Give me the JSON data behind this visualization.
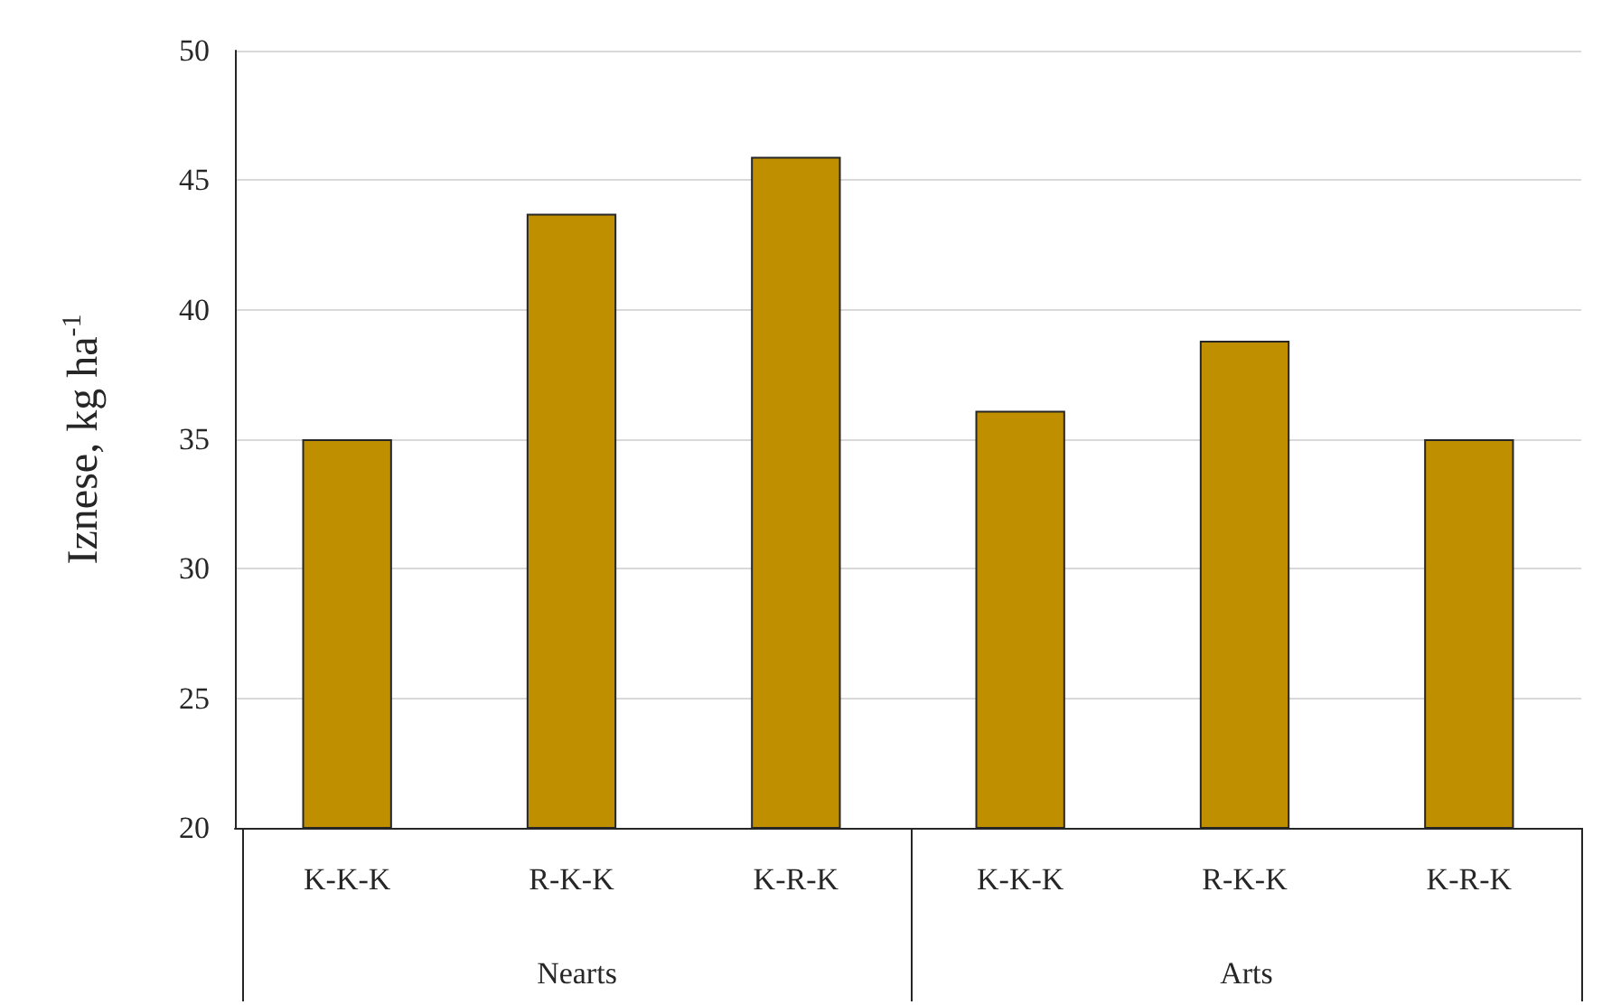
{
  "chart_data": {
    "type": "bar",
    "ylabel": "Iznese, kg ha$^{-1}$",
    "categories": [
      "K-K-K",
      "R-K-K",
      "K-R-K",
      "K-K-K",
      "R-K-K",
      "K-R-K"
    ],
    "values": [
      35.0,
      43.7,
      45.9,
      36.1,
      38.8,
      35.0
    ],
    "color": "#bf8f00",
    "ylim": [
      20,
      50
    ],
    "yticks": [
      20,
      25,
      30,
      35,
      40,
      45,
      50
    ],
    "grid": "y",
    "annotations": [
      "Nearts",
      "Arts"
    ]
  }
}
